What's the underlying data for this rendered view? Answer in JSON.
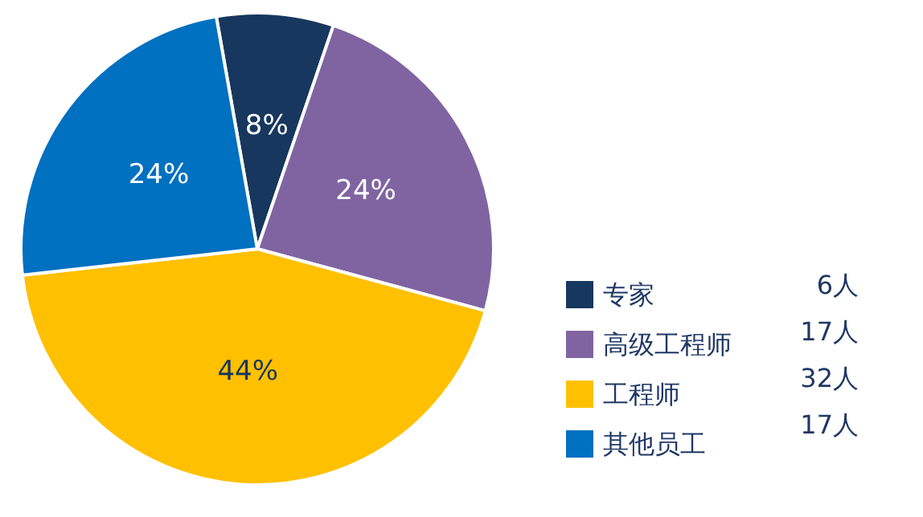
{
  "chart_data": {
    "type": "pie",
    "categories": [
      "专家",
      "高级工程师",
      "工程师",
      "其他员工"
    ],
    "values": [
      8,
      24,
      44,
      24
    ],
    "annotations": [
      "6人",
      "17人",
      "32人",
      "17人"
    ],
    "value_labels": [
      "8%",
      "24%",
      "44%",
      "24%"
    ],
    "colors": [
      "#17375e",
      "#8064a2",
      "#ffc000",
      "#0070c0"
    ],
    "legend": "bottom right"
  }
}
